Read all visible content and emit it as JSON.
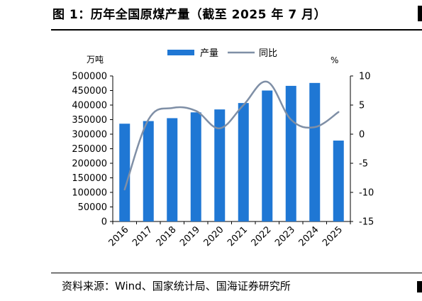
{
  "figure": {
    "title": "图 1：历年全国原煤产量（截至 2025 年 7 月）",
    "source": "资料来源：Wind、国家统计局、国海证券研究所"
  },
  "colors": {
    "bar": "#1f77d4",
    "line": "#7f8fa6",
    "axis": "#000000"
  },
  "chart_data": {
    "type": "bar",
    "categories": [
      "2016",
      "2017",
      "2018",
      "2019",
      "2020",
      "2021",
      "2022",
      "2023",
      "2024",
      "2025"
    ],
    "series": [
      {
        "name": "产量",
        "type": "bar",
        "axis": "left",
        "values": [
          336000,
          345000,
          355000,
          375000,
          385000,
          407000,
          450000,
          466000,
          476000,
          278000
        ]
      },
      {
        "name": "同比",
        "type": "line",
        "axis": "right",
        "smooth": true,
        "values": [
          -9.5,
          2.5,
          4.5,
          4.0,
          1.0,
          5.0,
          9.0,
          2.5,
          1.2,
          3.8
        ]
      }
    ],
    "left_axis": {
      "unit": "万吨",
      "min": 0,
      "max": 500000,
      "step": 50000,
      "ticks": [
        "0",
        "50000",
        "100000",
        "150000",
        "200000",
        "250000",
        "300000",
        "350000",
        "400000",
        "450000",
        "500000"
      ]
    },
    "right_axis": {
      "unit": "%",
      "min": -15,
      "max": 10,
      "step": 5,
      "ticks": [
        "-15",
        "-10",
        "-5",
        "0",
        "5",
        "10"
      ]
    },
    "grid": false,
    "legend_position": "top"
  }
}
